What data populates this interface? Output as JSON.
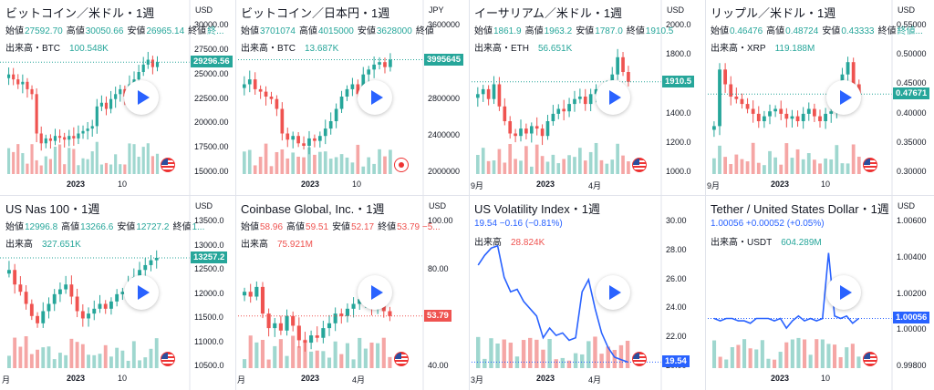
{
  "colors": {
    "up": "#26a69a",
    "down": "#ef5350",
    "line": "#2962ff",
    "vol_up": "#9fd7cf",
    "vol_down": "#f5a6a5"
  },
  "panels": [
    {
      "id": "btcusd",
      "title": "ビットコイン／米ドル・1週",
      "ohlc_labels": [
        "始値",
        "高値",
        "安値",
        "終値"
      ],
      "ohlc_values": [
        "27592.70",
        "30050.66",
        "26965.14",
        "終..."
      ],
      "volume_label": "出来高・BTC",
      "volume_value": "100.548K",
      "unit": "USD",
      "last_price": "29296.56",
      "last_color": "#26a69a",
      "y_ticks": [
        "30000.00",
        "27500.00",
        "25000.00",
        "22500.00",
        "20000.00",
        "17500.00",
        "15000.00"
      ],
      "x_ticks": [
        "",
        "2023",
        "10"
      ],
      "flag": "us"
    },
    {
      "id": "btcjpy",
      "title": "ビットコイン／日本円・1週",
      "ohlc_labels": [
        "始値",
        "高値",
        "安値",
        "終値"
      ],
      "ohlc_values": [
        "3701074",
        "4015000",
        "3628000",
        ""
      ],
      "volume_label": "出来高・BTC",
      "volume_value": "13.687K",
      "unit": "JPY",
      "last_price": "3995645",
      "last_color": "#26a69a",
      "y_ticks": [
        "3600000",
        "3200000",
        "2800000",
        "2400000",
        "2000000"
      ],
      "x_ticks": [
        "",
        "2023",
        "10"
      ],
      "flag": "jp"
    },
    {
      "id": "ethusd",
      "title": "イーサリアム／米ドル・1週",
      "ohlc_labels": [
        "始値",
        "高値",
        "安値",
        "終値"
      ],
      "ohlc_values": [
        "1861.9",
        "1963.2",
        "1787.0",
        "1910.5"
      ],
      "volume_label": "出来高・ETH",
      "volume_value": "56.651K",
      "unit": "USD",
      "last_price": "1910.5",
      "last_color": "#26a69a",
      "y_ticks": [
        "2000.0",
        "1800.0",
        "1600.0",
        "1400.0",
        "1200.0",
        "1000.0"
      ],
      "x_ticks": [
        "9月",
        "2023",
        "4月"
      ],
      "flag": "us"
    },
    {
      "id": "xrpusd",
      "title": "リップル／米ドル・1週",
      "ohlc_labels": [
        "始値",
        "高値",
        "安値",
        "終値"
      ],
      "ohlc_values": [
        "0.46476",
        "0.48724",
        "0.43333",
        "終値..."
      ],
      "volume_label": "出来高・XRP",
      "volume_value": "119.188M",
      "unit": "USD",
      "last_price": "0.47671",
      "last_color": "#26a69a",
      "y_ticks": [
        "0.55000",
        "0.50000",
        "0.45000",
        "0.40000",
        "0.35000",
        "0.30000"
      ],
      "x_ticks": [
        "9月",
        "2023",
        "10"
      ],
      "flag": "us"
    },
    {
      "id": "nas100",
      "title": "US Nas 100・1週",
      "ohlc_labels": [
        "始値",
        "高値",
        "安値",
        "終値"
      ],
      "ohlc_values": [
        "12996.8",
        "13266.6",
        "12727.2",
        "1..."
      ],
      "volume_label": "出来高",
      "volume_value": "327.651K",
      "unit": "USD",
      "last_price": "13257.2",
      "last_color": "#26a69a",
      "y_ticks": [
        "13500.0",
        "13000.0",
        "12500.0",
        "12000.0",
        "11500.0",
        "11000.0",
        "10500.0"
      ],
      "x_ticks": [
        "月",
        "2023",
        "10"
      ],
      "flag": "us"
    },
    {
      "id": "coin",
      "title": "Coinbase Global, Inc.・1週",
      "ohlc_labels": [
        "始値",
        "高値",
        "安値",
        "終値"
      ],
      "ohlc_values": [
        "58.96",
        "59.51",
        "52.17",
        "53.79 −5..."
      ],
      "volume_label": "出来高",
      "volume_value": "75.921M",
      "unit": "USD",
      "last_price": "53.79",
      "last_color": "#ef5350",
      "y_ticks": [
        "100.00",
        "80.00",
        "60.00",
        "40.00"
      ],
      "x_ticks": [
        "月",
        "2023",
        "4月"
      ],
      "flag": "us"
    },
    {
      "id": "vix",
      "title": "US Volatility Index・1週",
      "line_value": "19.54 −0.16 (−0.81%)",
      "volume_label": "出来高",
      "volume_value": "28.824K",
      "unit": "",
      "last_price": "19.54",
      "last_color": "#2962ff",
      "y_ticks": [
        "30.00",
        "28.00",
        "26.00",
        "24.00",
        "22.00",
        "20.00"
      ],
      "x_ticks": [
        "3月",
        "2023",
        "4月"
      ],
      "flag": "us"
    },
    {
      "id": "usdt",
      "title": "Tether / United States Dollar・1週",
      "line_value": "1.00056 +0.00052 (+0.05%)",
      "volume_label": "出来高・USDT",
      "volume_value": "604.289M",
      "unit": "USD",
      "last_price": "1.00056",
      "last_color": "#2962ff",
      "y_ticks": [
        "1.00600",
        "1.00400",
        "1.00200",
        "1.00000",
        "0.99800"
      ],
      "x_ticks": [
        "",
        "2023",
        "10"
      ],
      "flag": "us"
    }
  ]
}
